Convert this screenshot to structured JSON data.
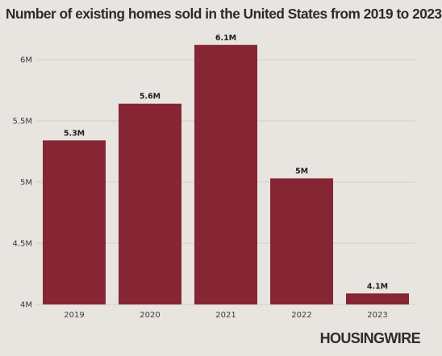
{
  "chart_data": {
    "type": "bar",
    "title": "Number of existing homes sold in the United States from 2019 to 2023",
    "xlabel": "",
    "ylabel": "",
    "categories": [
      "2019",
      "2020",
      "2021",
      "2022",
      "2023"
    ],
    "values": [
      5.34,
      5.64,
      6.12,
      5.03,
      4.09
    ],
    "data_labels": [
      "5.3M",
      "5.6M",
      "6.1M",
      "5M",
      "4.1M"
    ],
    "ylim": [
      4,
      6.2
    ],
    "yticks": [
      {
        "value": 4,
        "label": "4M"
      },
      {
        "value": 4.5,
        "label": "4.5M"
      },
      {
        "value": 5,
        "label": "5M"
      },
      {
        "value": 5.5,
        "label": "5.5M"
      },
      {
        "value": 6,
        "label": "6M"
      }
    ],
    "grid": true,
    "bar_color": "#862634",
    "background_color": "#e8e4df"
  },
  "logo": {
    "text": "HOUSINGWIRE"
  }
}
